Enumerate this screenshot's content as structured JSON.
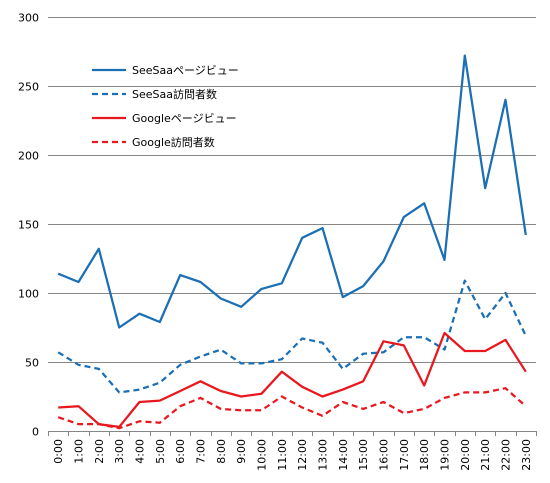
{
  "chart_data": {
    "type": "line",
    "title": "",
    "xlabel": "",
    "ylabel": "",
    "ylim": [
      0,
      300
    ],
    "yticks": [
      0,
      50,
      100,
      150,
      200,
      250,
      300
    ],
    "grid": "horizontal",
    "legend_position": "top-left",
    "categories": [
      "0:00",
      "1:00",
      "2:00",
      "3:00",
      "4:00",
      "5:00",
      "6:00",
      "7:00",
      "8:00",
      "9:00",
      "10:00",
      "11:00",
      "12:00",
      "13:00",
      "14:00",
      "15:00",
      "16:00",
      "17:00",
      "18:00",
      "19:00",
      "20:00",
      "21:00",
      "22:00",
      "23:00"
    ],
    "series": [
      {
        "name": "SeeSaaページビュー",
        "color": "#1a6fb5",
        "dash": "solid",
        "values": [
          114,
          108,
          132,
          75,
          85,
          79,
          113,
          108,
          96,
          90,
          103,
          107,
          140,
          147,
          97,
          105,
          123,
          155,
          165,
          124,
          272,
          176,
          240,
          142
        ]
      },
      {
        "name": "SeeSaa訪問者数",
        "color": "#1a6fb5",
        "dash": "dashed",
        "values": [
          57,
          48,
          45,
          28,
          30,
          35,
          48,
          54,
          59,
          49,
          49,
          52,
          67,
          64,
          45,
          56,
          57,
          68,
          68,
          59,
          109,
          81,
          100,
          69
        ]
      },
      {
        "name": "Googleページビュー",
        "color": "#e8181e",
        "dash": "solid",
        "values": [
          17,
          18,
          5,
          3,
          21,
          22,
          29,
          36,
          29,
          25,
          27,
          43,
          32,
          25,
          30,
          36,
          65,
          62,
          33,
          71,
          58,
          58,
          66,
          43
        ]
      },
      {
        "name": "Google訪問者数",
        "color": "#e8181e",
        "dash": "dashed",
        "values": [
          10,
          5,
          5,
          2,
          7,
          6,
          18,
          24,
          16,
          15,
          15,
          25,
          17,
          11,
          21,
          16,
          21,
          13,
          16,
          24,
          28,
          28,
          31,
          18
        ]
      }
    ]
  }
}
